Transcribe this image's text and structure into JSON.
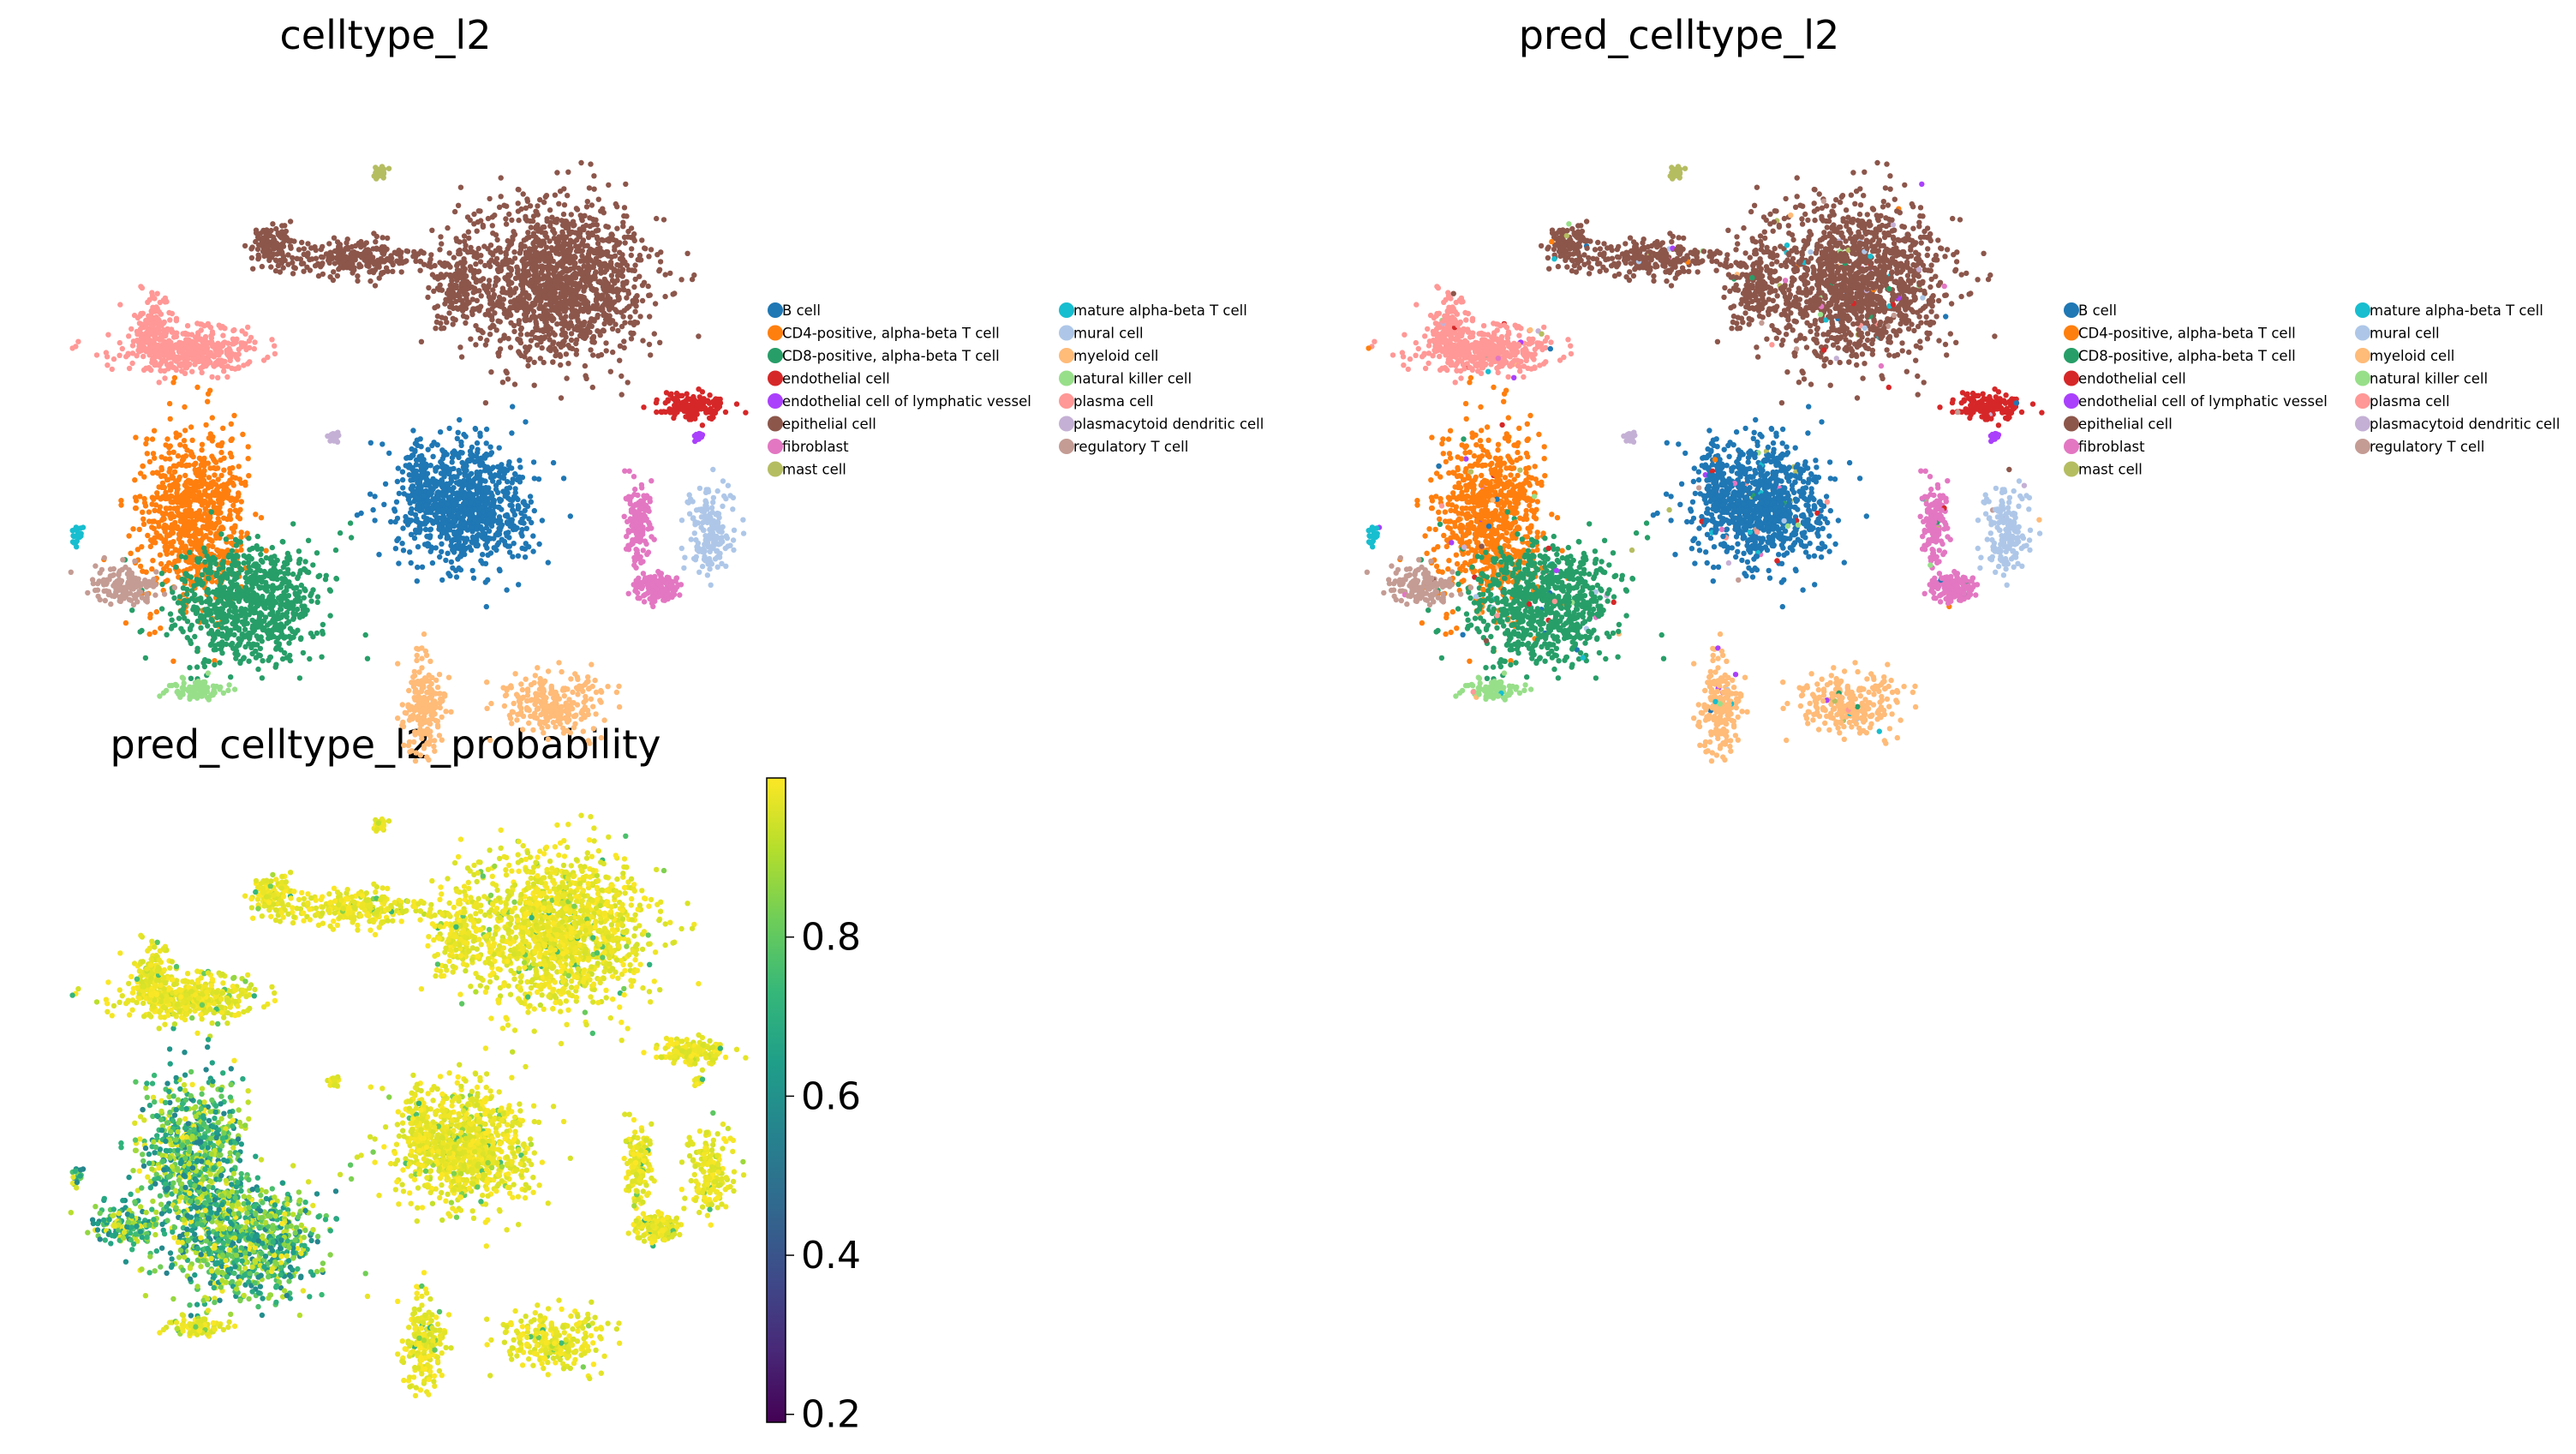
{
  "panels": [
    {
      "title": "celltype_l2",
      "legend_columns": [
        [
          "B cell",
          "CD4-positive, alpha-beta T cell",
          "CD8-positive, alpha-beta T cell",
          "endothelial cell",
          "endothelial cell of lymphatic vessel",
          "epithelial cell",
          "fibroblast",
          "mast cell"
        ],
        [
          "mature alpha-beta T cell",
          "mural cell",
          "myeloid cell",
          "natural killer cell",
          "plasma cell",
          "plasmacytoid dendritic cell",
          "regulatory T cell"
        ]
      ]
    },
    {
      "title": "pred_celltype_l2",
      "legend_columns": [
        [
          "B cell",
          "CD4-positive, alpha-beta T cell",
          "CD8-positive, alpha-beta T cell",
          "endothelial cell",
          "endothelial cell of lymphatic vessel",
          "epithelial cell",
          "fibroblast",
          "mast cell"
        ],
        [
          "mature alpha-beta T cell",
          "mural cell",
          "myeloid cell",
          "natural killer cell",
          "plasma cell",
          "plasmacytoid dendritic cell",
          "regulatory T cell"
        ]
      ]
    },
    {
      "title": "pred_celltype_l2_probability",
      "colorbar": {
        "ticks": [
          "0.2",
          "0.4",
          "0.6",
          "0.8"
        ],
        "colormap": "viridis"
      }
    }
  ],
  "chart_data": [
    {
      "type": "scatter",
      "title": "celltype_l2",
      "xlabel": "",
      "ylabel": "",
      "grid": false,
      "legend_placement": "right",
      "categories": [
        "B cell",
        "CD4-positive, alpha-beta T cell",
        "CD8-positive, alpha-beta T cell",
        "endothelial cell",
        "endothelial cell of lymphatic vessel",
        "epithelial cell",
        "fibroblast",
        "mast cell",
        "mature alpha-beta T cell",
        "mural cell",
        "myeloid cell",
        "natural killer cell",
        "plasma cell",
        "plasmacytoid dendritic cell",
        "regulatory T cell"
      ],
      "colors": [
        "#1f77b4",
        "#ff7f0e",
        "#279e68",
        "#d62728",
        "#aa40fc",
        "#8c564b",
        "#e377c2",
        "#b5bd61",
        "#17becf",
        "#aec7e8",
        "#ffbb78",
        "#98df8a",
        "#ff9896",
        "#c5b0d5",
        "#c49c94"
      ]
    },
    {
      "type": "scatter",
      "title": "pred_celltype_l2",
      "xlabel": "",
      "ylabel": "",
      "grid": false,
      "legend_placement": "right",
      "categories": [
        "B cell",
        "CD4-positive, alpha-beta T cell",
        "CD8-positive, alpha-beta T cell",
        "endothelial cell",
        "endothelial cell of lymphatic vessel",
        "epithelial cell",
        "fibroblast",
        "mast cell",
        "mature alpha-beta T cell",
        "mural cell",
        "myeloid cell",
        "natural killer cell",
        "plasma cell",
        "plasmacytoid dendritic cell",
        "regulatory T cell"
      ],
      "colors": [
        "#1f77b4",
        "#ff7f0e",
        "#279e68",
        "#d62728",
        "#aa40fc",
        "#8c564b",
        "#e377c2",
        "#b5bd61",
        "#17becf",
        "#aec7e8",
        "#ffbb78",
        "#98df8a",
        "#ff9896",
        "#c5b0d5",
        "#c49c94"
      ]
    },
    {
      "type": "scatter",
      "title": "pred_celltype_l2_probability",
      "colorbar_range": [
        0.19,
        1.0
      ],
      "colorbar_ticks": [
        0.2,
        0.4,
        0.6,
        0.8
      ],
      "colormap": "viridis",
      "grid": false
    }
  ]
}
